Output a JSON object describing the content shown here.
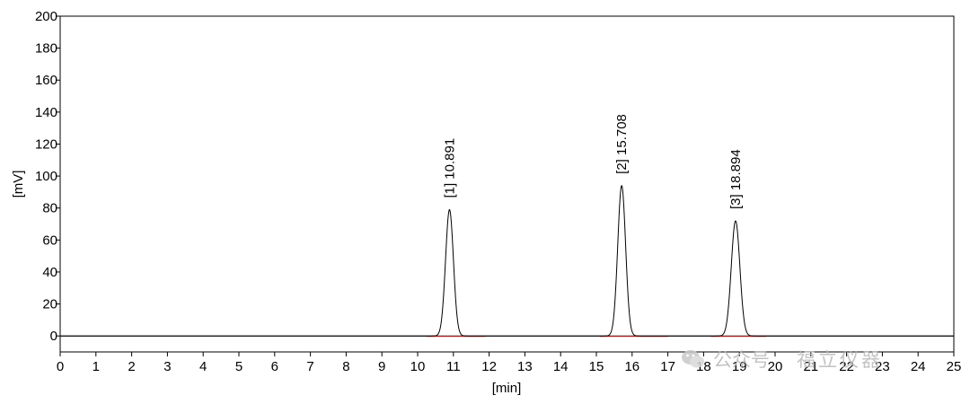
{
  "chart_data": {
    "type": "line",
    "xlabel": "[min]",
    "ylabel": "[mV]",
    "xlim": [
      0,
      25
    ],
    "ylim": [
      -10,
      200
    ],
    "x_ticks": [
      "0",
      "1",
      "2",
      "3",
      "4",
      "5",
      "6",
      "7",
      "8",
      "9",
      "10",
      "11",
      "12",
      "13",
      "14",
      "15",
      "16",
      "17",
      "18",
      "19",
      "20",
      "21",
      "22",
      "23",
      "24",
      "25"
    ],
    "y_ticks": [
      "0",
      "20",
      "40",
      "60",
      "80",
      "100",
      "120",
      "140",
      "160",
      "180",
      "200"
    ],
    "series": [
      {
        "color": "#000000",
        "baseline": 0,
        "peaks": [
          {
            "label": "[1]  10.891",
            "retention_time": 10.891,
            "height": 79,
            "width_sigma": 0.11
          },
          {
            "label": "[2]  15.708",
            "retention_time": 15.708,
            "height": 94,
            "width_sigma": 0.11
          },
          {
            "label": "[3]  18.894",
            "retention_time": 18.894,
            "height": 72,
            "width_sigma": 0.12
          }
        ]
      }
    ],
    "integration_baseline": {
      "color": "#e03030",
      "segments": [
        [
          10.25,
          11.9
        ],
        [
          15.1,
          17.0
        ],
        [
          18.2,
          19.75
        ]
      ]
    },
    "grid": false,
    "legend": "none"
  },
  "watermark": {
    "logo_icon": "wechat-logo-icon",
    "text_left": "公众号",
    "text_right": "福立仪器"
  }
}
